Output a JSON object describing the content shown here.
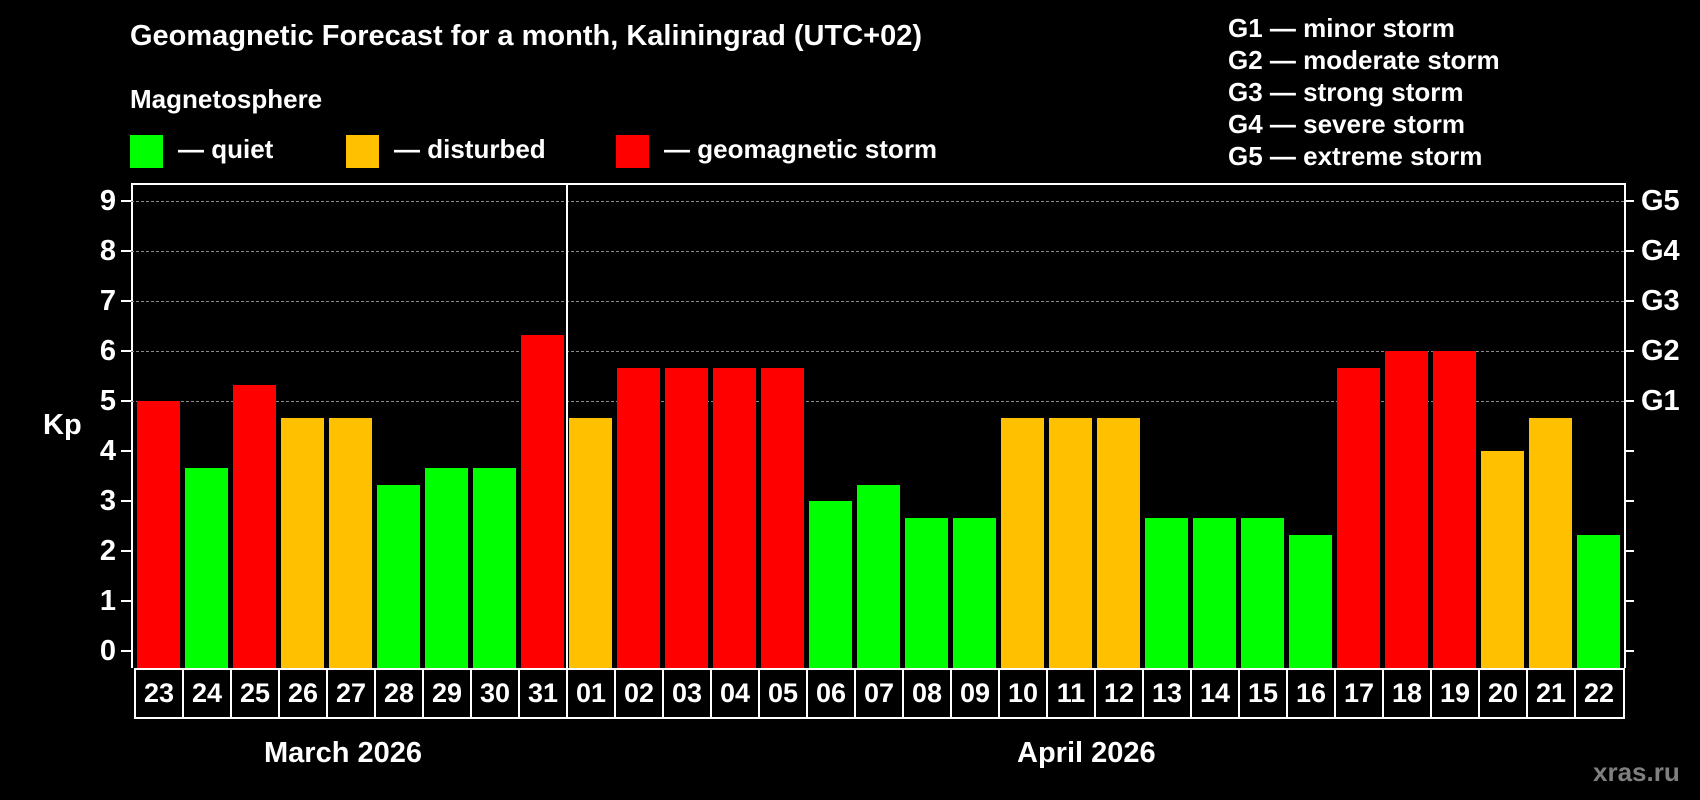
{
  "title": "Geomagnetic Forecast for a month, Kaliningrad (UTC+02)",
  "legend": {
    "heading": "Magnetosphere",
    "items": [
      {
        "label": "— quiet",
        "color": "#00ff00"
      },
      {
        "label": "— disturbed",
        "color": "#ffc000"
      },
      {
        "label": "— geomagnetic storm",
        "color": "#ff0000"
      }
    ]
  },
  "g_legend": [
    "G1 — minor storm",
    "G2 — moderate storm",
    "G3 — strong storm",
    "G4 — severe storm",
    "G5 — extreme storm"
  ],
  "axis": {
    "ylabel": "Kp",
    "yticks": [
      "0",
      "1",
      "2",
      "3",
      "4",
      "5",
      "6",
      "7",
      "8",
      "9"
    ],
    "gticks": [
      {
        "label": "G1",
        "kp": 5
      },
      {
        "label": "G2",
        "kp": 6
      },
      {
        "label": "G3",
        "kp": 7
      },
      {
        "label": "G4",
        "kp": 8
      },
      {
        "label": "G5",
        "kp": 9
      }
    ]
  },
  "months": {
    "march": "March 2026",
    "april": "April 2026"
  },
  "watermark": "xras.ru",
  "chart_data": {
    "type": "bar",
    "title": "Geomagnetic Forecast for a month, Kaliningrad (UTC+02)",
    "xlabel": "",
    "ylabel": "Kp",
    "ylim": [
      0,
      9
    ],
    "grid": true,
    "categories": [
      "23",
      "24",
      "25",
      "26",
      "27",
      "28",
      "29",
      "30",
      "31",
      "01",
      "02",
      "03",
      "04",
      "05",
      "06",
      "07",
      "08",
      "09",
      "10",
      "11",
      "12",
      "13",
      "14",
      "15",
      "16",
      "17",
      "18",
      "19",
      "20",
      "21",
      "22"
    ],
    "values": [
      5.0,
      3.67,
      5.33,
      4.67,
      4.67,
      3.33,
      3.67,
      3.67,
      6.33,
      4.67,
      5.67,
      5.67,
      5.67,
      5.67,
      3.0,
      3.33,
      2.67,
      2.67,
      4.67,
      4.67,
      4.67,
      2.67,
      2.67,
      2.67,
      2.33,
      5.67,
      6.0,
      6.0,
      4.0,
      4.67,
      2.33
    ],
    "status": [
      "storm",
      "quiet",
      "storm",
      "disturbed",
      "disturbed",
      "quiet",
      "quiet",
      "quiet",
      "storm",
      "disturbed",
      "storm",
      "storm",
      "storm",
      "storm",
      "quiet",
      "quiet",
      "quiet",
      "quiet",
      "disturbed",
      "disturbed",
      "disturbed",
      "quiet",
      "quiet",
      "quiet",
      "quiet",
      "storm",
      "storm",
      "storm",
      "disturbed",
      "disturbed",
      "quiet"
    ],
    "colors": {
      "quiet": "#00ff00",
      "disturbed": "#ffc000",
      "storm": "#ff0000"
    },
    "month_groups": [
      {
        "label": "March 2026",
        "from": "23",
        "to": "31"
      },
      {
        "label": "April 2026",
        "from": "01",
        "to": "22"
      }
    ],
    "secondary_axis": {
      "G1": 5,
      "G2": 6,
      "G3": 7,
      "G4": 8,
      "G5": 9
    },
    "legend_position": "top"
  }
}
